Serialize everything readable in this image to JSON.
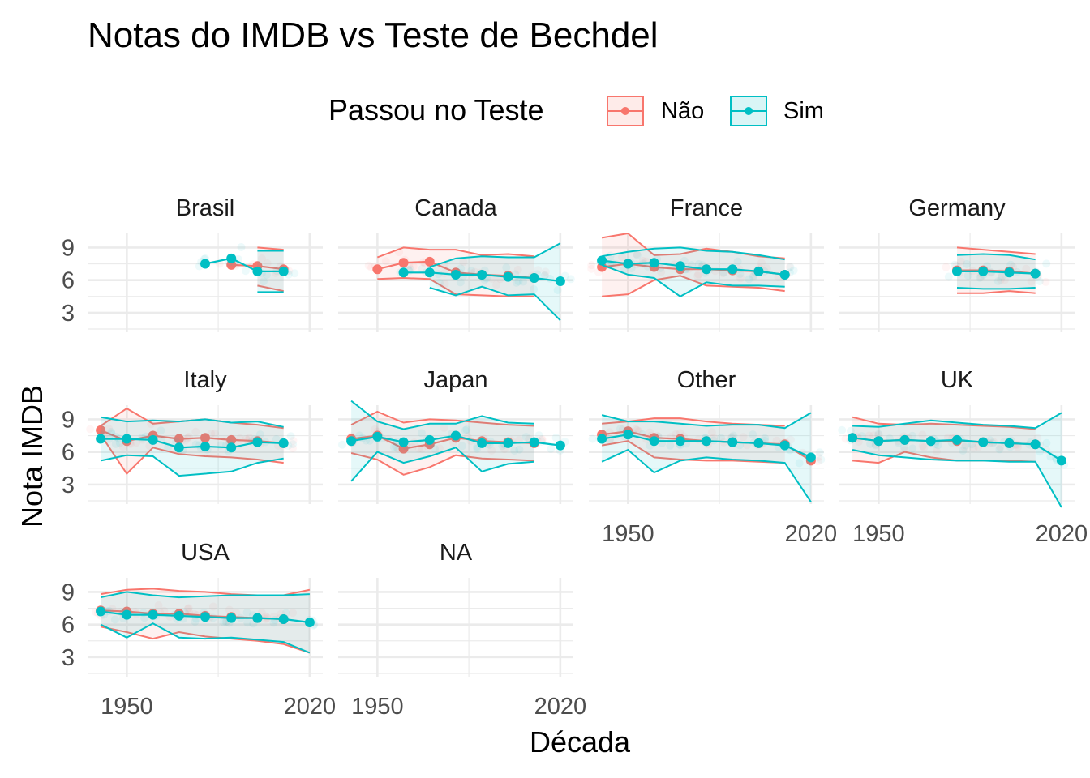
{
  "colors": {
    "nao": "#F8766D",
    "sim": "#00BFC4",
    "grid": "#ebebeb"
  },
  "chart_data": {
    "type": "line",
    "title": "Notas do IMDB vs Teste de Bechdel",
    "xlabel": "Década",
    "ylabel": "Nota IMDB",
    "legend": {
      "title": "Passou no Teste",
      "placement": "top",
      "entries": [
        "Não",
        "Sim"
      ]
    },
    "xlim": [
      1935,
      2025
    ],
    "ylim": [
      1.2,
      10.3
    ],
    "x_ticks": [
      1950,
      2020
    ],
    "x_tick_labels": [
      "1950",
      "2020"
    ],
    "y_ticks": [
      3,
      6,
      9
    ],
    "y_tick_labels": [
      "3",
      "6",
      "9"
    ],
    "grid": true,
    "facets": [
      {
        "name": "Brasil",
        "nao": {
          "x": [
            1990,
            2000,
            2010
          ],
          "y": [
            7.4,
            7.3,
            7.0
          ],
          "upper": [
            null,
            9.0,
            8.8
          ],
          "lower": [
            null,
            5.5,
            5.0
          ]
        },
        "sim": {
          "x": [
            1980,
            1990,
            2000,
            2010
          ],
          "y": [
            7.5,
            8.0,
            6.8,
            6.8
          ],
          "upper": [
            null,
            null,
            8.7,
            8.7
          ],
          "lower": [
            null,
            null,
            4.9,
            4.9
          ]
        }
      },
      {
        "name": "Canada",
        "nao": {
          "x": [
            1950,
            1960,
            1970,
            1980,
            1990,
            2000,
            2010
          ],
          "y": [
            7.0,
            7.6,
            7.7,
            6.7,
            6.5,
            6.4,
            6.2
          ],
          "upper": [
            8.1,
            9.0,
            8.8,
            8.8,
            8.3,
            8.4,
            8.2
          ],
          "lower": [
            6.1,
            6.2,
            6.1,
            4.7,
            4.6,
            4.5,
            4.5
          ]
        },
        "sim": {
          "x": [
            1960,
            1970,
            1980,
            1990,
            2000,
            2010,
            2020
          ],
          "y": [
            6.7,
            6.7,
            6.5,
            6.5,
            6.3,
            6.2,
            5.9
          ],
          "upper": [
            null,
            7.2,
            8.0,
            8.2,
            8.1,
            8.1,
            9.4
          ],
          "lower": [
            null,
            5.3,
            4.6,
            5.4,
            4.6,
            4.7,
            2.3
          ]
        }
      },
      {
        "name": "France",
        "nao": {
          "x": [
            1940,
            1950,
            1960,
            1970,
            1980,
            1990,
            2000,
            2010
          ],
          "y": [
            7.2,
            7.5,
            7.2,
            7.0,
            7.0,
            6.9,
            6.8,
            6.5
          ],
          "upper": [
            9.9,
            10.3,
            8.3,
            8.4,
            8.9,
            8.6,
            8.2,
            8.0
          ],
          "lower": [
            4.5,
            4.7,
            6.0,
            6.4,
            5.5,
            5.4,
            5.3,
            5.0
          ]
        },
        "sim": {
          "x": [
            1940,
            1950,
            1960,
            1970,
            1980,
            1990,
            2000,
            2010
          ],
          "y": [
            7.8,
            7.5,
            7.6,
            7.3,
            7.0,
            7.0,
            6.8,
            6.5
          ],
          "upper": [
            8.2,
            8.6,
            8.9,
            9.0,
            8.7,
            8.6,
            8.3,
            7.9
          ],
          "lower": [
            7.4,
            6.5,
            6.2,
            4.5,
            5.8,
            5.5,
            5.5,
            5.4
          ]
        }
      },
      {
        "name": "Germany",
        "nao": {
          "x": [
            1980,
            1990,
            2000,
            2010
          ],
          "y": [
            6.9,
            6.9,
            6.8,
            6.6
          ],
          "upper": [
            9.0,
            8.8,
            8.6,
            8.4
          ],
          "lower": [
            4.8,
            4.8,
            5.0,
            4.8
          ]
        },
        "sim": {
          "x": [
            1980,
            1990,
            2000,
            2010
          ],
          "y": [
            6.8,
            6.8,
            6.7,
            6.6
          ],
          "upper": [
            8.3,
            8.4,
            8.3,
            7.9
          ],
          "lower": [
            5.3,
            5.2,
            5.2,
            5.3
          ]
        }
      },
      {
        "name": "Italy",
        "nao": {
          "x": [
            1940,
            1950,
            1960,
            1970,
            1980,
            1990,
            2000,
            2010
          ],
          "y": [
            8.0,
            7.0,
            7.5,
            7.2,
            7.3,
            7.1,
            7.0,
            6.8
          ],
          "upper": [
            8.4,
            10.0,
            8.6,
            8.8,
            9.0,
            8.7,
            8.5,
            8.2
          ],
          "lower": [
            7.6,
            4.0,
            6.4,
            5.8,
            5.6,
            5.5,
            5.3,
            5.0
          ]
        },
        "sim": {
          "x": [
            1940,
            1950,
            1960,
            1970,
            1980,
            1990,
            2000,
            2010
          ],
          "y": [
            7.2,
            7.2,
            7.1,
            6.4,
            6.5,
            6.4,
            6.9,
            6.8
          ],
          "upper": [
            9.2,
            8.8,
            8.9,
            8.8,
            9.0,
            8.7,
            8.8,
            8.3
          ],
          "lower": [
            5.2,
            5.7,
            5.6,
            3.8,
            4.0,
            4.2,
            5.0,
            5.4
          ]
        }
      },
      {
        "name": "Japan",
        "nao": {
          "x": [
            1940,
            1950,
            1960,
            1970,
            1980,
            1990,
            2000,
            2010
          ],
          "y": [
            7.2,
            7.5,
            6.3,
            6.7,
            7.3,
            7.0,
            6.9,
            6.8
          ],
          "upper": [
            8.5,
            9.7,
            8.7,
            9.0,
            8.9,
            8.7,
            8.5,
            8.4
          ],
          "lower": [
            5.9,
            5.3,
            3.9,
            4.6,
            5.7,
            5.4,
            5.3,
            5.2
          ]
        },
        "sim": {
          "x": [
            1940,
            1950,
            1960,
            1970,
            1980,
            1990,
            2000,
            2010,
            2020
          ],
          "y": [
            7.0,
            7.4,
            6.9,
            7.1,
            7.5,
            6.8,
            6.8,
            6.9,
            6.6
          ],
          "upper": [
            10.7,
            8.8,
            8.1,
            8.6,
            8.6,
            9.3,
            8.7,
            8.6,
            null
          ],
          "lower": [
            3.3,
            6.0,
            5.0,
            5.6,
            6.4,
            4.2,
            4.9,
            5.1,
            null
          ]
        }
      },
      {
        "name": "Other",
        "nao": {
          "x": [
            1940,
            1950,
            1960,
            1970,
            1980,
            1990,
            2000,
            2010,
            2020
          ],
          "y": [
            7.6,
            7.9,
            7.3,
            7.2,
            7.0,
            6.9,
            6.8,
            6.7,
            5.2
          ],
          "upper": [
            8.6,
            8.8,
            9.1,
            9.1,
            8.8,
            8.6,
            8.5,
            8.4,
            null
          ],
          "lower": [
            6.6,
            7.0,
            5.5,
            5.3,
            5.2,
            5.2,
            5.1,
            5.0,
            null
          ]
        },
        "sim": {
          "x": [
            1940,
            1950,
            1960,
            1970,
            1980,
            1990,
            2000,
            2010,
            2020
          ],
          "y": [
            7.2,
            7.6,
            7.0,
            7.0,
            7.0,
            6.9,
            6.8,
            6.6,
            5.5
          ],
          "upper": [
            9.4,
            8.8,
            8.8,
            8.6,
            8.4,
            8.5,
            8.5,
            8.2,
            9.6
          ],
          "lower": [
            5.1,
            6.2,
            4.1,
            5.2,
            5.5,
            5.3,
            5.2,
            5.0,
            1.4
          ]
        }
      },
      {
        "name": "UK",
        "nao": {
          "x": [
            1940,
            1950,
            1960,
            1970,
            1980,
            1990,
            2000,
            2010
          ],
          "y": [
            7.3,
            7.0,
            7.1,
            7.0,
            7.0,
            6.9,
            6.8,
            6.7
          ],
          "upper": [
            9.2,
            8.6,
            8.5,
            8.6,
            8.5,
            8.4,
            8.3,
            8.1
          ],
          "lower": [
            5.2,
            5.0,
            6.0,
            5.5,
            5.2,
            5.2,
            5.2,
            5.1
          ]
        },
        "sim": {
          "x": [
            1940,
            1950,
            1960,
            1970,
            1980,
            1990,
            2000,
            2010,
            2020
          ],
          "y": [
            7.3,
            7.0,
            7.1,
            7.0,
            7.1,
            6.9,
            6.8,
            6.7,
            5.2
          ],
          "upper": [
            8.4,
            8.3,
            8.6,
            8.9,
            8.7,
            8.5,
            8.4,
            8.2,
            9.6
          ],
          "lower": [
            6.2,
            5.7,
            5.5,
            5.3,
            5.2,
            5.2,
            5.1,
            5.1,
            0.9
          ]
        }
      },
      {
        "name": "USA",
        "nao": {
          "x": [
            1940,
            1950,
            1960,
            1970,
            1980,
            1990,
            2000,
            2010,
            2020
          ],
          "y": [
            7.3,
            7.2,
            7.0,
            7.0,
            6.8,
            6.7,
            6.6,
            6.5,
            null
          ],
          "upper": [
            8.8,
            9.2,
            9.3,
            9.1,
            9.0,
            8.8,
            8.7,
            8.7,
            9.2
          ],
          "lower": [
            5.8,
            5.3,
            4.7,
            5.3,
            4.9,
            4.7,
            4.5,
            4.2,
            3.4
          ]
        },
        "sim": {
          "x": [
            1940,
            1950,
            1960,
            1970,
            1980,
            1990,
            2000,
            2010,
            2020
          ],
          "y": [
            7.2,
            6.9,
            6.9,
            6.8,
            6.7,
            6.6,
            6.6,
            6.5,
            6.2
          ],
          "upper": [
            8.5,
            9.0,
            8.7,
            8.5,
            8.6,
            8.7,
            8.7,
            8.7,
            8.8
          ],
          "lower": [
            6.0,
            4.8,
            6.1,
            4.8,
            4.7,
            4.8,
            4.6,
            4.4,
            3.4
          ]
        }
      },
      {
        "name": "NA",
        "nao": {
          "x": [],
          "y": [],
          "upper": [],
          "lower": []
        },
        "sim": {
          "x": [],
          "y": [],
          "upper": [],
          "lower": []
        }
      }
    ]
  }
}
